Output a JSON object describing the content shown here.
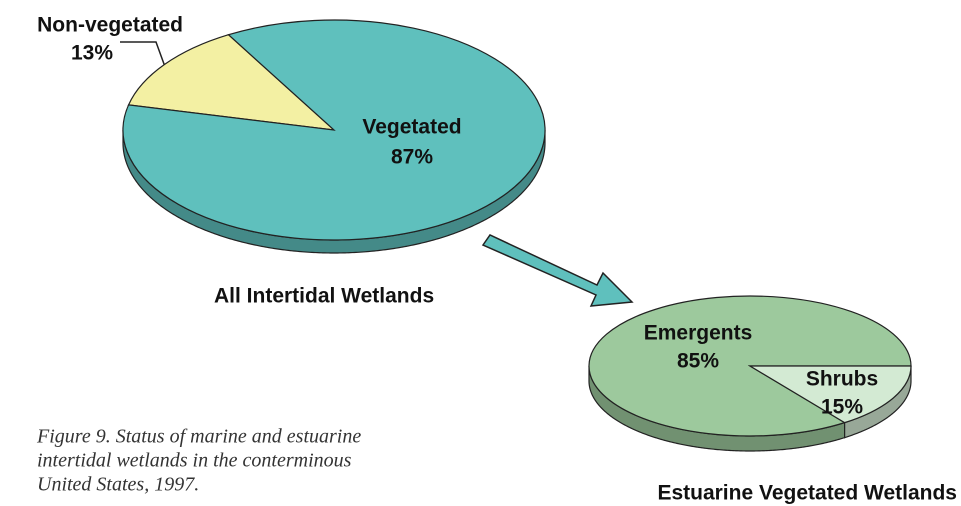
{
  "chart_data": [
    {
      "type": "pie",
      "title": "All Intertidal Wetlands",
      "categories": [
        "Non-vegetated",
        "Vegetated"
      ],
      "values": [
        13,
        87
      ],
      "value_labels": [
        "13%",
        "87%"
      ],
      "colors": [
        "#f3f0a3",
        "#5fc0bd"
      ]
    },
    {
      "type": "pie",
      "title": "Estuarine Vegetated Wetlands",
      "categories": [
        "Emergents",
        "Shrubs"
      ],
      "values": [
        85,
        15
      ],
      "value_labels": [
        "85%",
        "15%"
      ],
      "colors": [
        "#9dc99d",
        "#d3ead3"
      ]
    }
  ],
  "caption": [
    "Figure 9. Status of marine and estuarine",
    "intertidal wetlands in the conterminous",
    "United States, 1997."
  ]
}
